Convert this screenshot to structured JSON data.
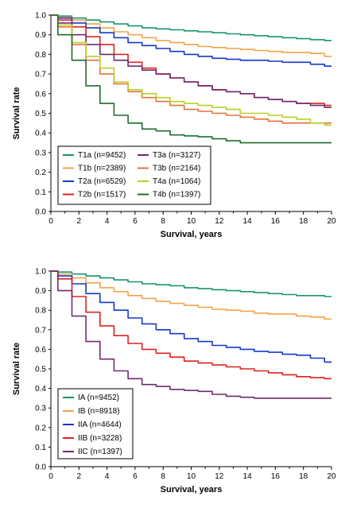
{
  "chart_data": [
    {
      "type": "line",
      "title": "",
      "xlabel": "Survival, years",
      "ylabel": "Survival rate",
      "xlim": [
        0,
        20
      ],
      "ylim": [
        0,
        1
      ],
      "xticks": [
        "0",
        "2",
        "4",
        "6",
        "8",
        "10",
        "12",
        "14",
        "16",
        "18",
        "20"
      ],
      "yticks": [
        "0.0",
        "0.1",
        "0.2",
        "0.3",
        "0.4",
        "0.5",
        "0.6",
        "0.7",
        "0.8",
        "0.9",
        "1.0"
      ],
      "grid": false,
      "legend_position": "bottom-left",
      "legend_columns": 2,
      "series": [
        {
          "name": "T1a (n=9452)",
          "color": "#1a9370",
          "x": [
            0,
            1,
            2,
            3,
            4,
            5,
            6,
            7,
            8,
            9,
            10,
            11,
            12,
            13,
            14,
            15,
            16,
            17,
            18,
            19,
            20
          ],
          "y": [
            1.0,
            0.995,
            0.985,
            0.975,
            0.965,
            0.955,
            0.945,
            0.935,
            0.93,
            0.925,
            0.92,
            0.915,
            0.91,
            0.905,
            0.9,
            0.895,
            0.89,
            0.885,
            0.88,
            0.875,
            0.87
          ]
        },
        {
          "name": "T1b (n=2389)",
          "color": "#f4a24b",
          "x": [
            0,
            1,
            2,
            3,
            4,
            5,
            6,
            7,
            8,
            9,
            10,
            11,
            12,
            13,
            14,
            15,
            16,
            17,
            18,
            19,
            20
          ],
          "y": [
            1.0,
            0.99,
            0.975,
            0.955,
            0.935,
            0.915,
            0.9,
            0.885,
            0.87,
            0.86,
            0.85,
            0.84,
            0.835,
            0.83,
            0.825,
            0.82,
            0.815,
            0.81,
            0.81,
            0.805,
            0.79
          ]
        },
        {
          "name": "T2a (n=6529)",
          "color": "#1538c8",
          "x": [
            0,
            1,
            2,
            3,
            4,
            5,
            6,
            7,
            8,
            9,
            10,
            11,
            12,
            13,
            14,
            15,
            16,
            17,
            18,
            19,
            20
          ],
          "y": [
            1.0,
            0.985,
            0.96,
            0.935,
            0.91,
            0.885,
            0.86,
            0.845,
            0.83,
            0.815,
            0.8,
            0.79,
            0.78,
            0.775,
            0.77,
            0.77,
            0.765,
            0.76,
            0.76,
            0.75,
            0.74
          ]
        },
        {
          "name": "T2b (n=1517)",
          "color": "#e02020",
          "x": [
            0,
            1,
            2,
            3,
            4,
            5,
            6,
            7,
            8,
            9,
            10,
            11,
            12,
            13,
            14,
            15,
            16,
            17,
            18,
            19,
            20
          ],
          "y": [
            1.0,
            0.975,
            0.94,
            0.89,
            0.85,
            0.8,
            0.76,
            0.73,
            0.7,
            0.68,
            0.66,
            0.64,
            0.62,
            0.61,
            0.6,
            0.58,
            0.57,
            0.56,
            0.55,
            0.55,
            0.54
          ]
        },
        {
          "name": "T3a (n=3127)",
          "color": "#6d2c6d",
          "x": [
            0,
            1,
            2,
            3,
            4,
            5,
            6,
            7,
            8,
            9,
            10,
            11,
            12,
            13,
            14,
            15,
            16,
            17,
            18,
            19,
            20
          ],
          "y": [
            1.0,
            0.96,
            0.9,
            0.85,
            0.8,
            0.77,
            0.74,
            0.72,
            0.7,
            0.68,
            0.66,
            0.64,
            0.62,
            0.61,
            0.6,
            0.58,
            0.57,
            0.56,
            0.55,
            0.54,
            0.53
          ]
        },
        {
          "name": "T3b (n=2164)",
          "color": "#e8703c",
          "x": [
            0,
            1,
            2,
            3,
            4,
            5,
            6,
            7,
            8,
            9,
            10,
            11,
            12,
            13,
            14,
            15,
            16,
            17,
            18,
            19,
            20
          ],
          "y": [
            1.0,
            0.94,
            0.85,
            0.77,
            0.7,
            0.65,
            0.61,
            0.58,
            0.56,
            0.54,
            0.52,
            0.51,
            0.5,
            0.49,
            0.48,
            0.47,
            0.46,
            0.45,
            0.45,
            0.45,
            0.45
          ]
        },
        {
          "name": "T4a (n=1064)",
          "color": "#b8cf2a",
          "x": [
            0,
            1,
            2,
            3,
            4,
            5,
            6,
            7,
            8,
            9,
            10,
            11,
            12,
            13,
            14,
            15,
            16,
            17,
            18,
            19,
            20
          ],
          "y": [
            1.0,
            0.95,
            0.86,
            0.79,
            0.73,
            0.66,
            0.62,
            0.6,
            0.58,
            0.56,
            0.55,
            0.54,
            0.53,
            0.52,
            0.5,
            0.5,
            0.49,
            0.48,
            0.47,
            0.45,
            0.44
          ]
        },
        {
          "name": "T4b (n=1397)",
          "color": "#1f6b2f",
          "x": [
            0,
            1,
            2,
            3,
            4,
            5,
            6,
            7,
            8,
            9,
            10,
            11,
            12,
            13,
            14,
            15,
            16,
            17,
            18,
            19,
            20
          ],
          "y": [
            1.0,
            0.9,
            0.77,
            0.64,
            0.55,
            0.49,
            0.45,
            0.42,
            0.41,
            0.39,
            0.385,
            0.38,
            0.37,
            0.36,
            0.35,
            0.35,
            0.35,
            0.35,
            0.35,
            0.35,
            0.35
          ]
        }
      ]
    },
    {
      "type": "line",
      "title": "",
      "xlabel": "Survival, years",
      "ylabel": "Survival rate",
      "xlim": [
        0,
        20
      ],
      "ylim": [
        0,
        1
      ],
      "xticks": [
        "0",
        "2",
        "4",
        "6",
        "8",
        "10",
        "12",
        "14",
        "16",
        "18",
        "20"
      ],
      "yticks": [
        "0.0",
        "0.1",
        "0.2",
        "0.3",
        "0.4",
        "0.5",
        "0.6",
        "0.7",
        "0.8",
        "0.9",
        "1.0"
      ],
      "grid": false,
      "legend_position": "bottom-left",
      "legend_columns": 1,
      "series": [
        {
          "name": "IA (n=9452)",
          "color": "#1a9370",
          "x": [
            0,
            1,
            2,
            3,
            4,
            5,
            6,
            7,
            8,
            9,
            10,
            11,
            12,
            13,
            14,
            15,
            16,
            17,
            18,
            19,
            20
          ],
          "y": [
            1.0,
            0.995,
            0.985,
            0.975,
            0.965,
            0.955,
            0.945,
            0.935,
            0.93,
            0.925,
            0.915,
            0.91,
            0.905,
            0.9,
            0.895,
            0.89,
            0.885,
            0.88,
            0.875,
            0.875,
            0.87
          ]
        },
        {
          "name": "IB (n=8918)",
          "color": "#f4a24b",
          "x": [
            0,
            1,
            2,
            3,
            4,
            5,
            6,
            7,
            8,
            9,
            10,
            11,
            12,
            13,
            14,
            15,
            16,
            17,
            18,
            19,
            20
          ],
          "y": [
            1.0,
            0.985,
            0.965,
            0.94,
            0.915,
            0.895,
            0.875,
            0.86,
            0.845,
            0.835,
            0.825,
            0.815,
            0.805,
            0.8,
            0.795,
            0.785,
            0.78,
            0.78,
            0.77,
            0.765,
            0.755
          ]
        },
        {
          "name": "IIA (n=4644)",
          "color": "#1538c8",
          "x": [
            0,
            1,
            2,
            3,
            4,
            5,
            6,
            7,
            8,
            9,
            10,
            11,
            12,
            13,
            14,
            15,
            16,
            17,
            18,
            19,
            20
          ],
          "y": [
            1.0,
            0.975,
            0.935,
            0.885,
            0.84,
            0.8,
            0.76,
            0.73,
            0.7,
            0.68,
            0.655,
            0.64,
            0.62,
            0.61,
            0.6,
            0.59,
            0.585,
            0.575,
            0.57,
            0.555,
            0.535
          ]
        },
        {
          "name": "IIB (n=3228)",
          "color": "#e02020",
          "x": [
            0,
            1,
            2,
            3,
            4,
            5,
            6,
            7,
            8,
            9,
            10,
            11,
            12,
            13,
            14,
            15,
            16,
            17,
            18,
            19,
            20
          ],
          "y": [
            1.0,
            0.96,
            0.87,
            0.79,
            0.72,
            0.67,
            0.63,
            0.6,
            0.58,
            0.56,
            0.54,
            0.53,
            0.52,
            0.51,
            0.5,
            0.49,
            0.48,
            0.47,
            0.46,
            0.455,
            0.45
          ]
        },
        {
          "name": "IIC (n=1397)",
          "color": "#6d2c6d",
          "x": [
            0,
            1,
            2,
            3,
            4,
            5,
            6,
            7,
            8,
            9,
            10,
            11,
            12,
            13,
            14,
            15,
            16,
            17,
            18,
            19,
            20
          ],
          "y": [
            1.0,
            0.9,
            0.77,
            0.64,
            0.55,
            0.49,
            0.45,
            0.42,
            0.41,
            0.395,
            0.39,
            0.385,
            0.37,
            0.36,
            0.355,
            0.35,
            0.35,
            0.35,
            0.35,
            0.35,
            0.35
          ]
        }
      ]
    }
  ]
}
